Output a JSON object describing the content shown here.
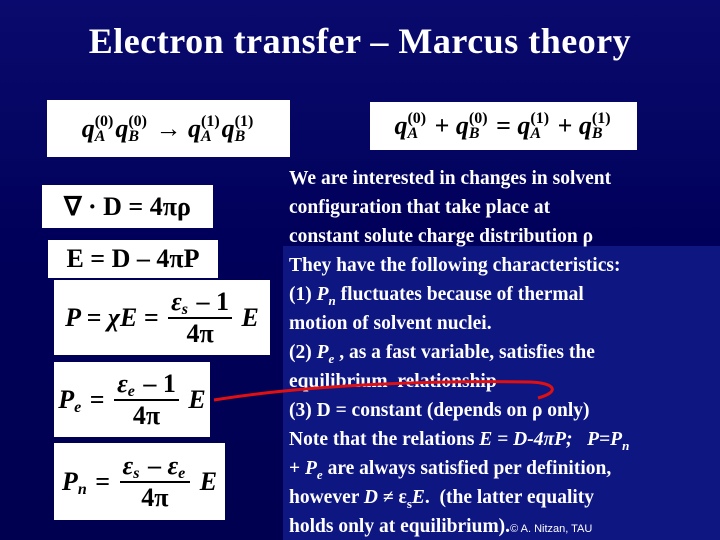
{
  "title": "Electron transfer – Marcus theory",
  "equations": [
    {
      "tokens": [
        {
          "b": "q",
          "i": true,
          "sub": "A",
          "sup": "(0)"
        },
        {
          "b": "q",
          "i": true,
          "sub": "B",
          "sup": "(0)"
        },
        " → ",
        {
          "b": "q",
          "i": true,
          "sub": "A",
          "sup": "(1)"
        },
        {
          "b": "q",
          "i": true,
          "sub": "B",
          "sup": "(1)"
        }
      ]
    },
    {
      "tokens": [
        {
          "b": "q",
          "i": true,
          "sub": "A",
          "sup": "(0)"
        },
        " + ",
        {
          "b": "q",
          "i": true,
          "sub": "B",
          "sup": "(0)"
        },
        " = ",
        {
          "b": "q",
          "i": true,
          "sub": "A",
          "sup": "(1)"
        },
        " + ",
        {
          "b": "q",
          "i": true,
          "sub": "B",
          "sup": "(1)"
        }
      ]
    },
    {
      "tokens": [
        "∇ · D = 4πρ"
      ]
    },
    {
      "tokens": [
        "E = D – 4πP"
      ]
    },
    {
      "tokens": [
        {
          "b": "P = χE = ",
          "i": true
        },
        {
          "num": [
            {
              "b": "ε",
              "i": true,
              "sub": "s"
            },
            " – 1"
          ],
          "den": [
            "4π"
          ]
        },
        {
          "b": " E",
          "i": true
        }
      ]
    },
    {
      "tokens": [
        {
          "b": "P",
          "i": true,
          "sub": "e"
        },
        " = ",
        {
          "num": [
            {
              "b": "ε",
              "i": true,
              "sub": "e"
            },
            " – 1"
          ],
          "den": [
            "4π"
          ]
        },
        {
          "b": " E",
          "i": true
        }
      ]
    },
    {
      "tokens": [
        {
          "b": "P",
          "i": true,
          "sub": "n"
        },
        " = ",
        {
          "num": [
            {
              "b": "ε",
              "i": true,
              "sub": "s"
            },
            " – ",
            {
              "b": "ε",
              "i": true,
              "sub": "e"
            }
          ],
          "den": [
            "4π"
          ]
        },
        {
          "b": " E",
          "i": true
        }
      ]
    }
  ],
  "lines": [
    [
      {
        "t": "We are interested in changes in solvent"
      }
    ],
    [
      {
        "t": "configuration that take place at"
      }
    ],
    [
      {
        "t": "constant solute charge distribution ρ"
      }
    ],
    [
      {
        "t": "They have the following characteristics:"
      }
    ],
    [
      {
        "t": "(1) "
      },
      {
        "t": "P",
        "i": true
      },
      {
        "t": "n",
        "i": true,
        "sub": true
      },
      {
        "t": " fluctuates because of thermal"
      }
    ],
    [
      {
        "t": "motion of solvent nuclei."
      }
    ],
    [
      {
        "t": "(2) "
      },
      {
        "t": "P",
        "i": true
      },
      {
        "t": "e",
        "i": true,
        "sub": true
      },
      {
        "t": " , as a fast variable, satisfies the"
      }
    ],
    [
      {
        "t": "equilibrium  relationship"
      }
    ],
    [
      {
        "t": "(3) D = constant (depends on ρ only)"
      }
    ],
    [
      {
        "t": "Note that the relations "
      },
      {
        "t": "E = D-4πP;   P=P",
        "i": true
      },
      {
        "t": "n",
        "i": true,
        "sub": true
      }
    ],
    [
      {
        "t": "+ "
      },
      {
        "t": "P",
        "i": true
      },
      {
        "t": "e",
        "i": true,
        "sub": true
      },
      {
        "t": " are always satisfied per definition,"
      }
    ],
    [
      {
        "t": "however "
      },
      {
        "t": "D",
        "i": true
      },
      {
        "t": " ≠ ε"
      },
      {
        "t": "s",
        "sub": true
      },
      {
        "t": "E",
        "i": true
      },
      {
        "t": ".  (the latter equality"
      }
    ],
    [
      {
        "t": "holds only at equilibrium)."
      }
    ]
  ],
  "credit": "© A. Nitzan, TAU"
}
